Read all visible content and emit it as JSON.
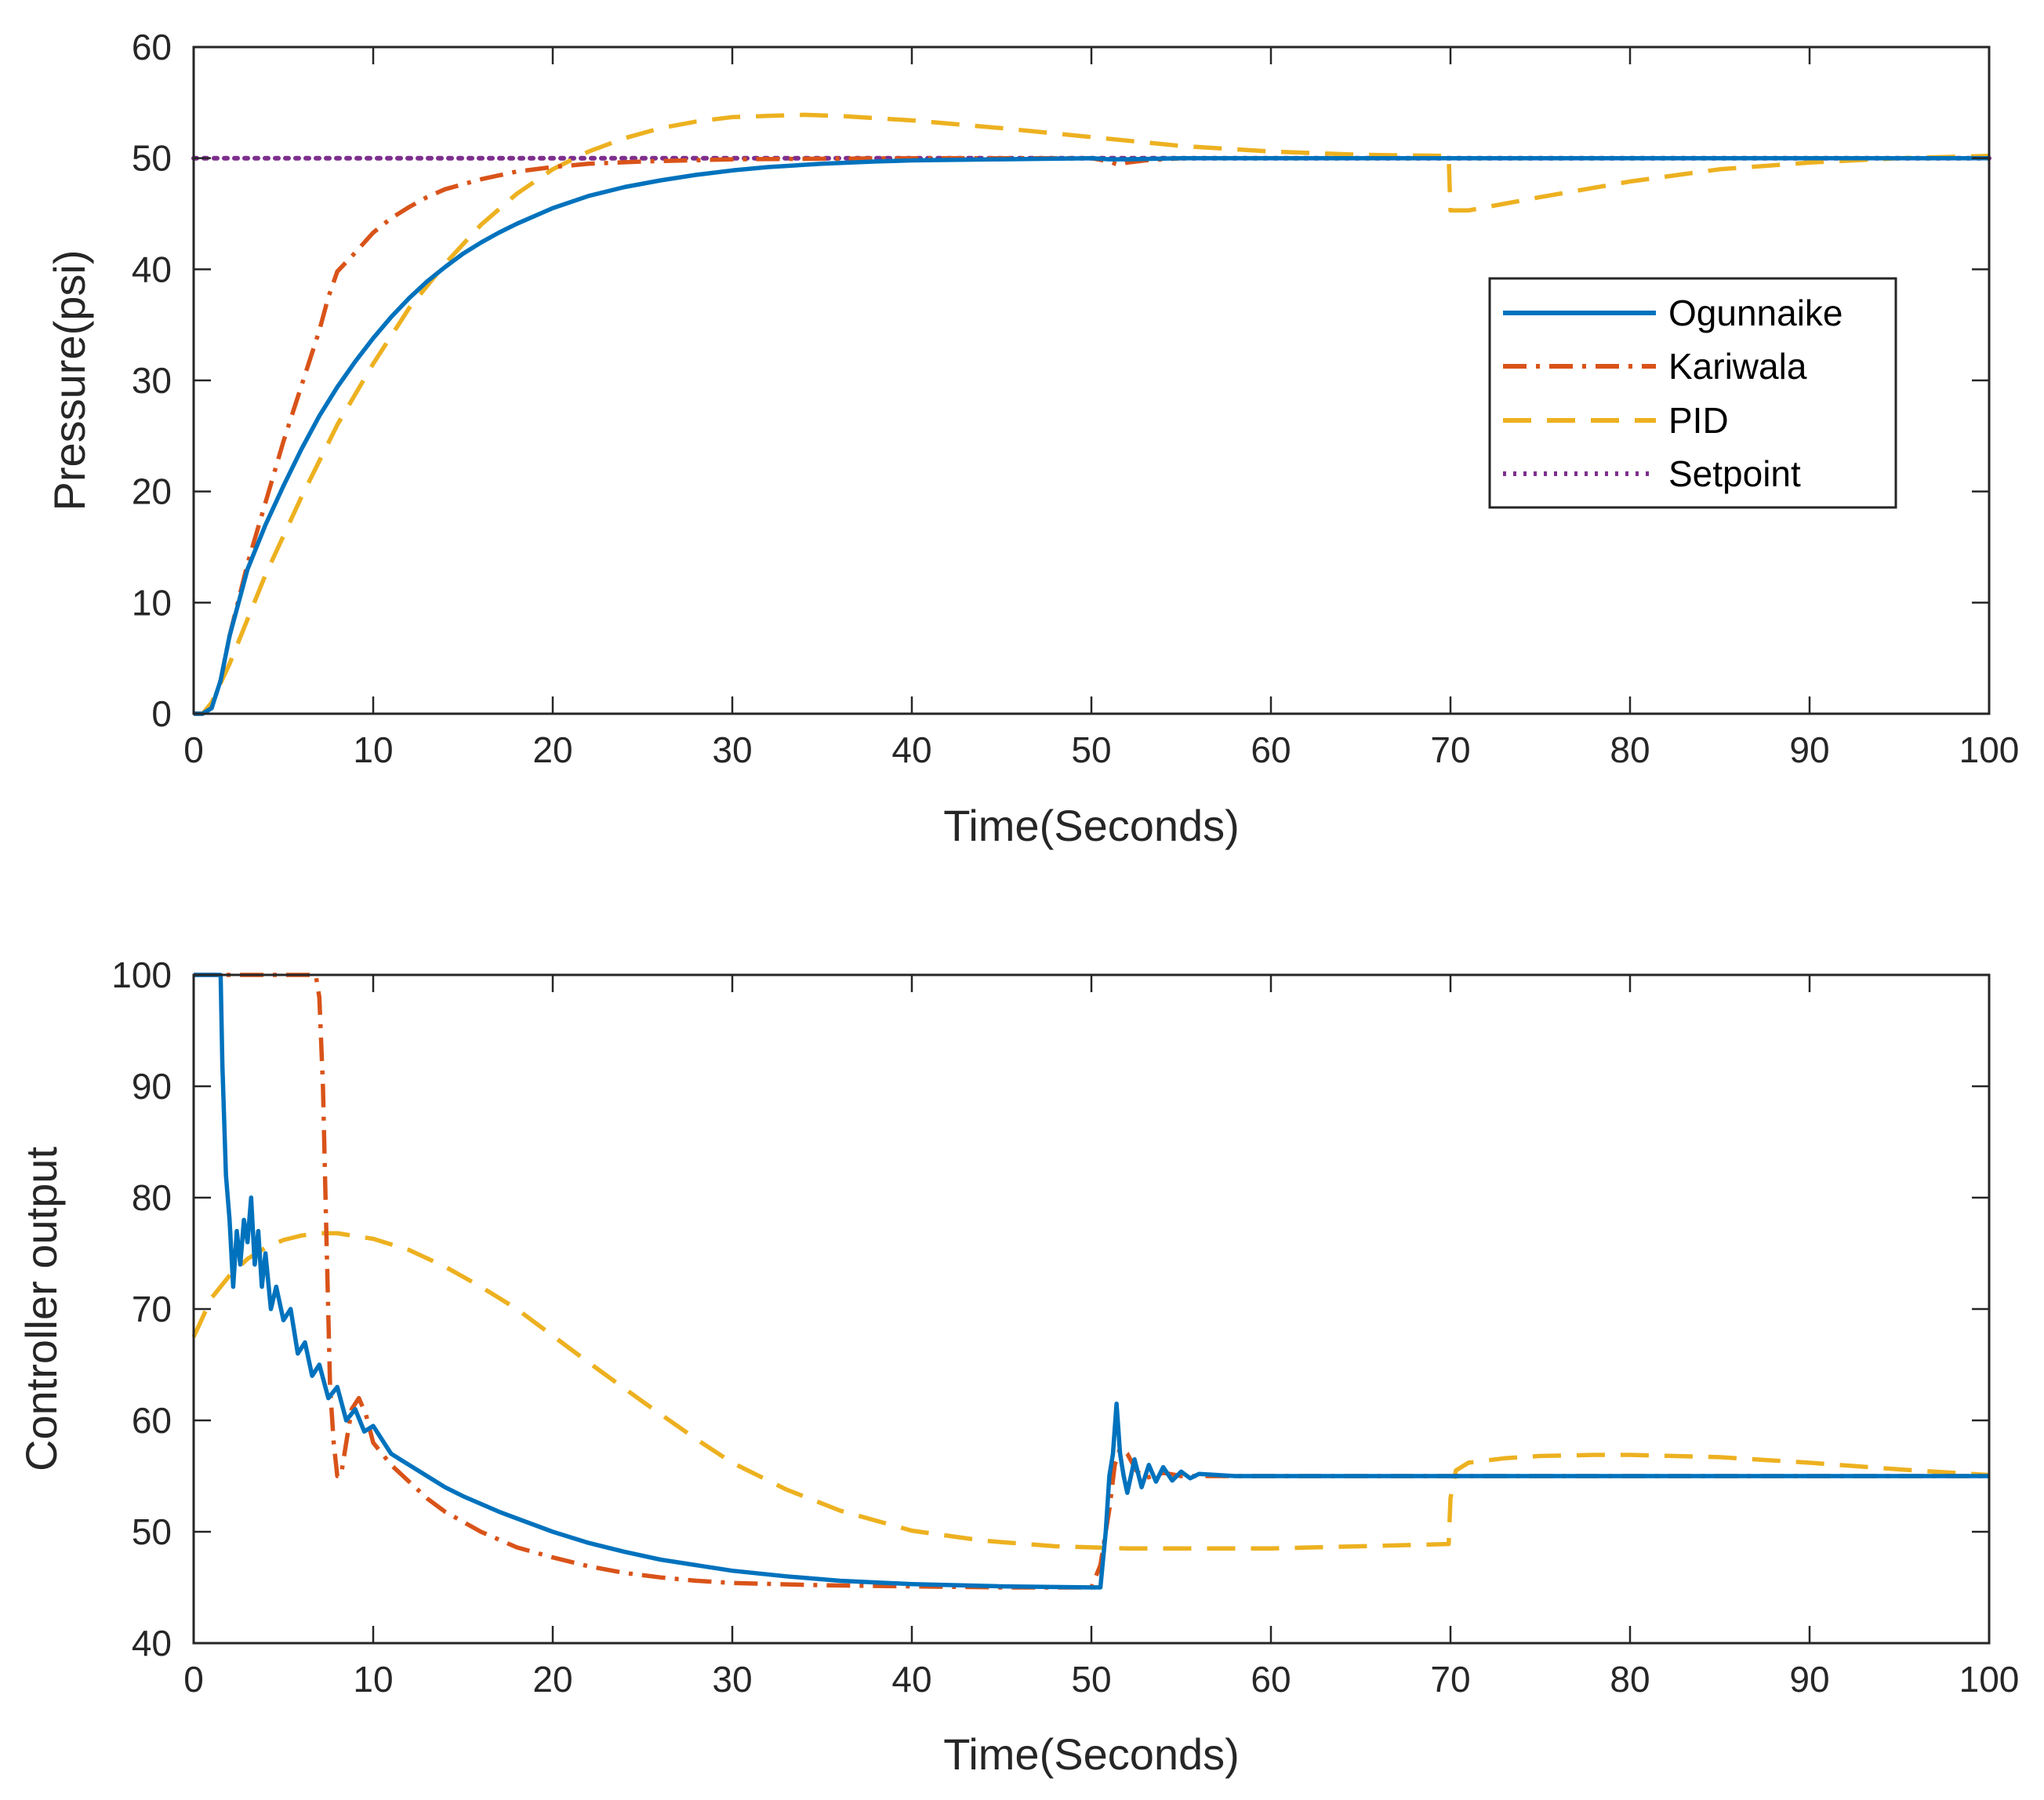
{
  "chart_data": [
    {
      "type": "line",
      "title": "",
      "xlabel": "Time(Seconds)",
      "ylabel": "Pressure(psi)",
      "xlim": [
        0,
        100
      ],
      "ylim": [
        0,
        60
      ],
      "xticks": [
        0,
        10,
        20,
        30,
        40,
        50,
        60,
        70,
        80,
        90,
        100
      ],
      "yticks": [
        0,
        10,
        20,
        30,
        40,
        50,
        60
      ],
      "grid": false,
      "legend": "middle-right",
      "series": [
        {
          "name": "Ogunnaike",
          "color": "#0072BD",
          "style": "solid",
          "x": [
            0,
            0.5,
            1,
            1.5,
            2,
            2.5,
            3,
            4,
            5,
            6,
            7,
            8,
            9,
            10,
            11,
            12,
            13,
            14,
            15,
            16,
            17,
            18,
            20,
            22,
            24,
            26,
            28,
            30,
            32,
            35,
            38,
            40,
            45,
            50,
            51,
            52,
            55,
            60,
            65,
            70,
            75,
            80,
            90,
            100
          ],
          "y": [
            0,
            0,
            0.5,
            3,
            7,
            10,
            13,
            17,
            20.5,
            23.8,
            26.8,
            29.4,
            31.7,
            33.8,
            35.7,
            37.4,
            38.9,
            40.2,
            41.4,
            42.4,
            43.3,
            44.1,
            45.5,
            46.6,
            47.4,
            48,
            48.5,
            48.9,
            49.2,
            49.5,
            49.7,
            49.8,
            49.9,
            50,
            49.9,
            49.9,
            50,
            50,
            50,
            50,
            50,
            50,
            50,
            50
          ]
        },
        {
          "name": "Kariwala",
          "color": "#D95319",
          "style": "dashdot",
          "x": [
            0,
            0.5,
            1,
            1.5,
            2,
            3,
            4,
            5,
            6,
            7,
            7.5,
            8,
            9,
            10,
            11,
            12,
            13,
            14,
            16,
            18,
            20,
            22,
            25,
            30,
            40,
            50,
            51,
            51.5,
            52,
            53,
            55,
            60,
            70,
            80,
            90,
            100
          ],
          "y": [
            0,
            0,
            0.5,
            3,
            7,
            13.5,
            19,
            24.5,
            29.5,
            34.5,
            37.5,
            39.8,
            41.5,
            43.3,
            44.6,
            45.6,
            46.5,
            47.2,
            48.1,
            48.8,
            49.2,
            49.5,
            49.7,
            49.9,
            50,
            50,
            49.7,
            49.4,
            49.6,
            49.8,
            50,
            50,
            50,
            50,
            50,
            50
          ]
        },
        {
          "name": "PID",
          "color": "#EDB120",
          "style": "dashed",
          "x": [
            0,
            0.5,
            1,
            2,
            3,
            4,
            6,
            8,
            10,
            12,
            14,
            16,
            18,
            20,
            22,
            24,
            26,
            28,
            30,
            32,
            34,
            36,
            38,
            40,
            45,
            50,
            55,
            60,
            65,
            69.9,
            70,
            70.5,
            71,
            75,
            80,
            85,
            90,
            95,
            100
          ],
          "y": [
            0,
            0,
            1,
            4.5,
            8.5,
            12.5,
            19.5,
            26,
            31.5,
            36.5,
            40.5,
            44,
            46.8,
            49,
            50.6,
            51.8,
            52.7,
            53.3,
            53.7,
            53.8,
            53.9,
            53.8,
            53.6,
            53.4,
            52.7,
            51.9,
            51.1,
            50.6,
            50.3,
            50.2,
            45.3,
            45.3,
            45.3,
            46.5,
            47.9,
            49,
            49.6,
            50,
            50.2
          ]
        },
        {
          "name": "Setpoint",
          "color": "#7E2F8E",
          "style": "dotted",
          "x": [
            0,
            100
          ],
          "y": [
            50,
            50
          ]
        }
      ]
    },
    {
      "type": "line",
      "title": "",
      "xlabel": "Time(Seconds)",
      "ylabel": "Controller output",
      "xlim": [
        0,
        100
      ],
      "ylim": [
        40,
        100
      ],
      "xticks": [
        0,
        10,
        20,
        30,
        40,
        50,
        60,
        70,
        80,
        90,
        100
      ],
      "yticks": [
        40,
        50,
        60,
        70,
        80,
        90,
        100
      ],
      "grid": false,
      "legend": "none",
      "series": [
        {
          "name": "Ogunnaike",
          "color": "#0072BD",
          "style": "solid",
          "x": [
            0,
            1.5,
            1.6,
            1.8,
            2,
            2.2,
            2.4,
            2.6,
            2.8,
            3,
            3.2,
            3.4,
            3.6,
            3.8,
            4,
            4.3,
            4.6,
            5,
            5.4,
            5.8,
            6.2,
            6.6,
            7,
            7.5,
            8,
            8.5,
            9,
            9.5,
            10,
            11,
            12,
            13,
            14,
            15,
            16,
            17,
            18,
            20,
            22,
            24,
            26,
            28,
            30,
            33,
            36,
            40,
            45,
            50.5,
            50.8,
            51,
            51.2,
            51.4,
            51.6,
            51.8,
            52,
            52.4,
            52.8,
            53.2,
            53.6,
            54,
            54.5,
            55,
            55.5,
            56,
            57,
            58,
            60,
            70,
            80,
            90,
            100
          ],
          "y": [
            100,
            100,
            92,
            82,
            78,
            72,
            77,
            74,
            78,
            76,
            80,
            74,
            77,
            72,
            75,
            70,
            72,
            69,
            70,
            66,
            67,
            64,
            65,
            62,
            63,
            60,
            61,
            59,
            59.5,
            57,
            56,
            55,
            54,
            53.2,
            52.5,
            51.8,
            51.2,
            50,
            49,
            48.2,
            47.5,
            47,
            46.5,
            46,
            45.6,
            45.3,
            45.1,
            45,
            50,
            55,
            57,
            61.5,
            57,
            55,
            53.5,
            56.5,
            54,
            56,
            54.5,
            55.8,
            54.6,
            55.4,
            54.8,
            55.2,
            55.1,
            55,
            55,
            55,
            55,
            55,
            55
          ]
        },
        {
          "name": "Kariwala",
          "color": "#D95319",
          "style": "dashdot",
          "x": [
            0,
            6.8,
            7,
            7.2,
            7.4,
            7.6,
            7.8,
            8,
            8.2,
            8.5,
            8.8,
            9.2,
            9.6,
            10,
            11,
            12,
            13,
            14,
            16,
            18,
            20,
            22,
            24,
            26,
            28,
            30,
            35,
            40,
            45,
            50,
            50.5,
            51,
            51.3,
            51.6,
            52,
            52.5,
            53,
            54,
            55,
            60,
            70,
            80,
            90,
            100
          ],
          "y": [
            100,
            100,
            98,
            90,
            76,
            63,
            58,
            55,
            55,
            58,
            61,
            62,
            60.5,
            58,
            56,
            54.5,
            53,
            51.8,
            50,
            48.6,
            47.7,
            46.9,
            46.3,
            45.9,
            45.6,
            45.4,
            45.2,
            45.1,
            45,
            45,
            47,
            52,
            56,
            57.5,
            57,
            55.5,
            54.8,
            55.3,
            55,
            55,
            55,
            55,
            55,
            55
          ]
        },
        {
          "name": "PID",
          "color": "#EDB120",
          "style": "dashed",
          "x": [
            0,
            1,
            2,
            3,
            4,
            5,
            6,
            7,
            8,
            10,
            12,
            14,
            16,
            18,
            20,
            22,
            25,
            28,
            30,
            33,
            36,
            40,
            44,
            48,
            50,
            52,
            55,
            60,
            65,
            69.9,
            70,
            70.3,
            71,
            73,
            75,
            78,
            80,
            85,
            90,
            95,
            100
          ],
          "y": [
            67.5,
            71,
            73,
            74.5,
            75.5,
            76.2,
            76.6,
            76.8,
            76.8,
            76.3,
            75.3,
            73.8,
            72,
            70,
            67.6,
            65.2,
            61.7,
            58.3,
            56.2,
            53.8,
            51.9,
            50.1,
            49.2,
            48.7,
            48.6,
            48.5,
            48.5,
            48.5,
            48.7,
            48.9,
            53,
            55.5,
            56.2,
            56.6,
            56.8,
            56.9,
            56.9,
            56.7,
            56.2,
            55.6,
            55.1
          ]
        }
      ]
    }
  ]
}
